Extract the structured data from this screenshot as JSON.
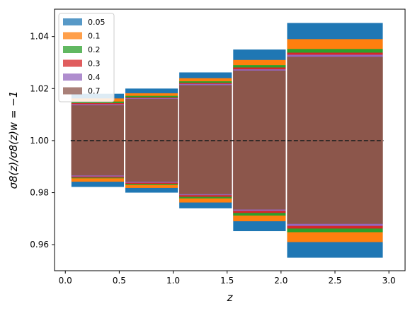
{
  "chart_data": {
    "type": "bar",
    "xlabel": "z",
    "ylabel": "σ8(z)/σ8(z)w = −1",
    "xlim": [
      -0.1,
      3.15
    ],
    "ylim": [
      0.95,
      1.0505
    ],
    "xticks": [
      0.0,
      0.5,
      1.0,
      1.5,
      2.0,
      2.5,
      3.0
    ],
    "xtick_labels": [
      "0.0",
      "0.5",
      "1.0",
      "1.5",
      "2.0",
      "2.5",
      "3.0"
    ],
    "yticks": [
      0.96,
      0.98,
      1.0,
      1.02,
      1.04
    ],
    "ytick_labels": [
      "0.96",
      "0.98",
      "1.00",
      "1.02",
      "1.04"
    ],
    "reference_line": {
      "y": 1.0,
      "x_range": [
        0.05,
        2.95
      ],
      "style": "dashed",
      "color": "#222222"
    },
    "bins": [
      {
        "x_range": [
          0.05,
          0.55
        ]
      },
      {
        "x_range": [
          0.55,
          1.05
        ]
      },
      {
        "x_range": [
          1.05,
          1.55
        ]
      },
      {
        "x_range": [
          1.55,
          2.05
        ]
      },
      {
        "x_range": [
          2.05,
          2.95
        ]
      }
    ],
    "series": [
      {
        "name": "0.05",
        "color": "#1f77b4",
        "lower": [
          0.9822,
          0.98,
          0.974,
          0.9652,
          0.955
        ],
        "upper": [
          1.018,
          1.02,
          1.0262,
          1.035,
          1.0452
        ]
      },
      {
        "name": "0.1",
        "color": "#ff7f0e",
        "lower": [
          0.9842,
          0.9818,
          0.9762,
          0.969,
          0.961
        ],
        "upper": [
          1.0162,
          1.0182,
          1.024,
          1.031,
          1.039
        ]
      },
      {
        "name": "0.2",
        "color": "#2ca02c",
        "lower": [
          0.9855,
          0.983,
          0.9778,
          0.9712,
          0.9648
        ],
        "upper": [
          1.015,
          1.0172,
          1.0228,
          1.029,
          1.0352
        ]
      },
      {
        "name": "0.3",
        "color": "#d62728",
        "lower": [
          0.9858,
          0.9834,
          0.9784,
          0.9722,
          0.9662
        ],
        "upper": [
          1.0144,
          1.0166,
          1.0222,
          1.0281,
          1.0338
        ]
      },
      {
        "name": "0.4",
        "color": "#9467bd",
        "lower": [
          0.9862,
          0.9838,
          0.979,
          0.973,
          0.9672
        ],
        "upper": [
          1.014,
          1.0163,
          1.0218,
          1.0274,
          1.033
        ]
      },
      {
        "name": "0.7",
        "color": "#8c564b",
        "lower": [
          0.9866,
          0.9842,
          0.9794,
          0.9735,
          0.968
        ],
        "upper": [
          1.0136,
          1.016,
          1.0213,
          1.0269,
          1.0322
        ]
      }
    ],
    "legend": {
      "position": "top-left"
    },
    "grid": false
  }
}
